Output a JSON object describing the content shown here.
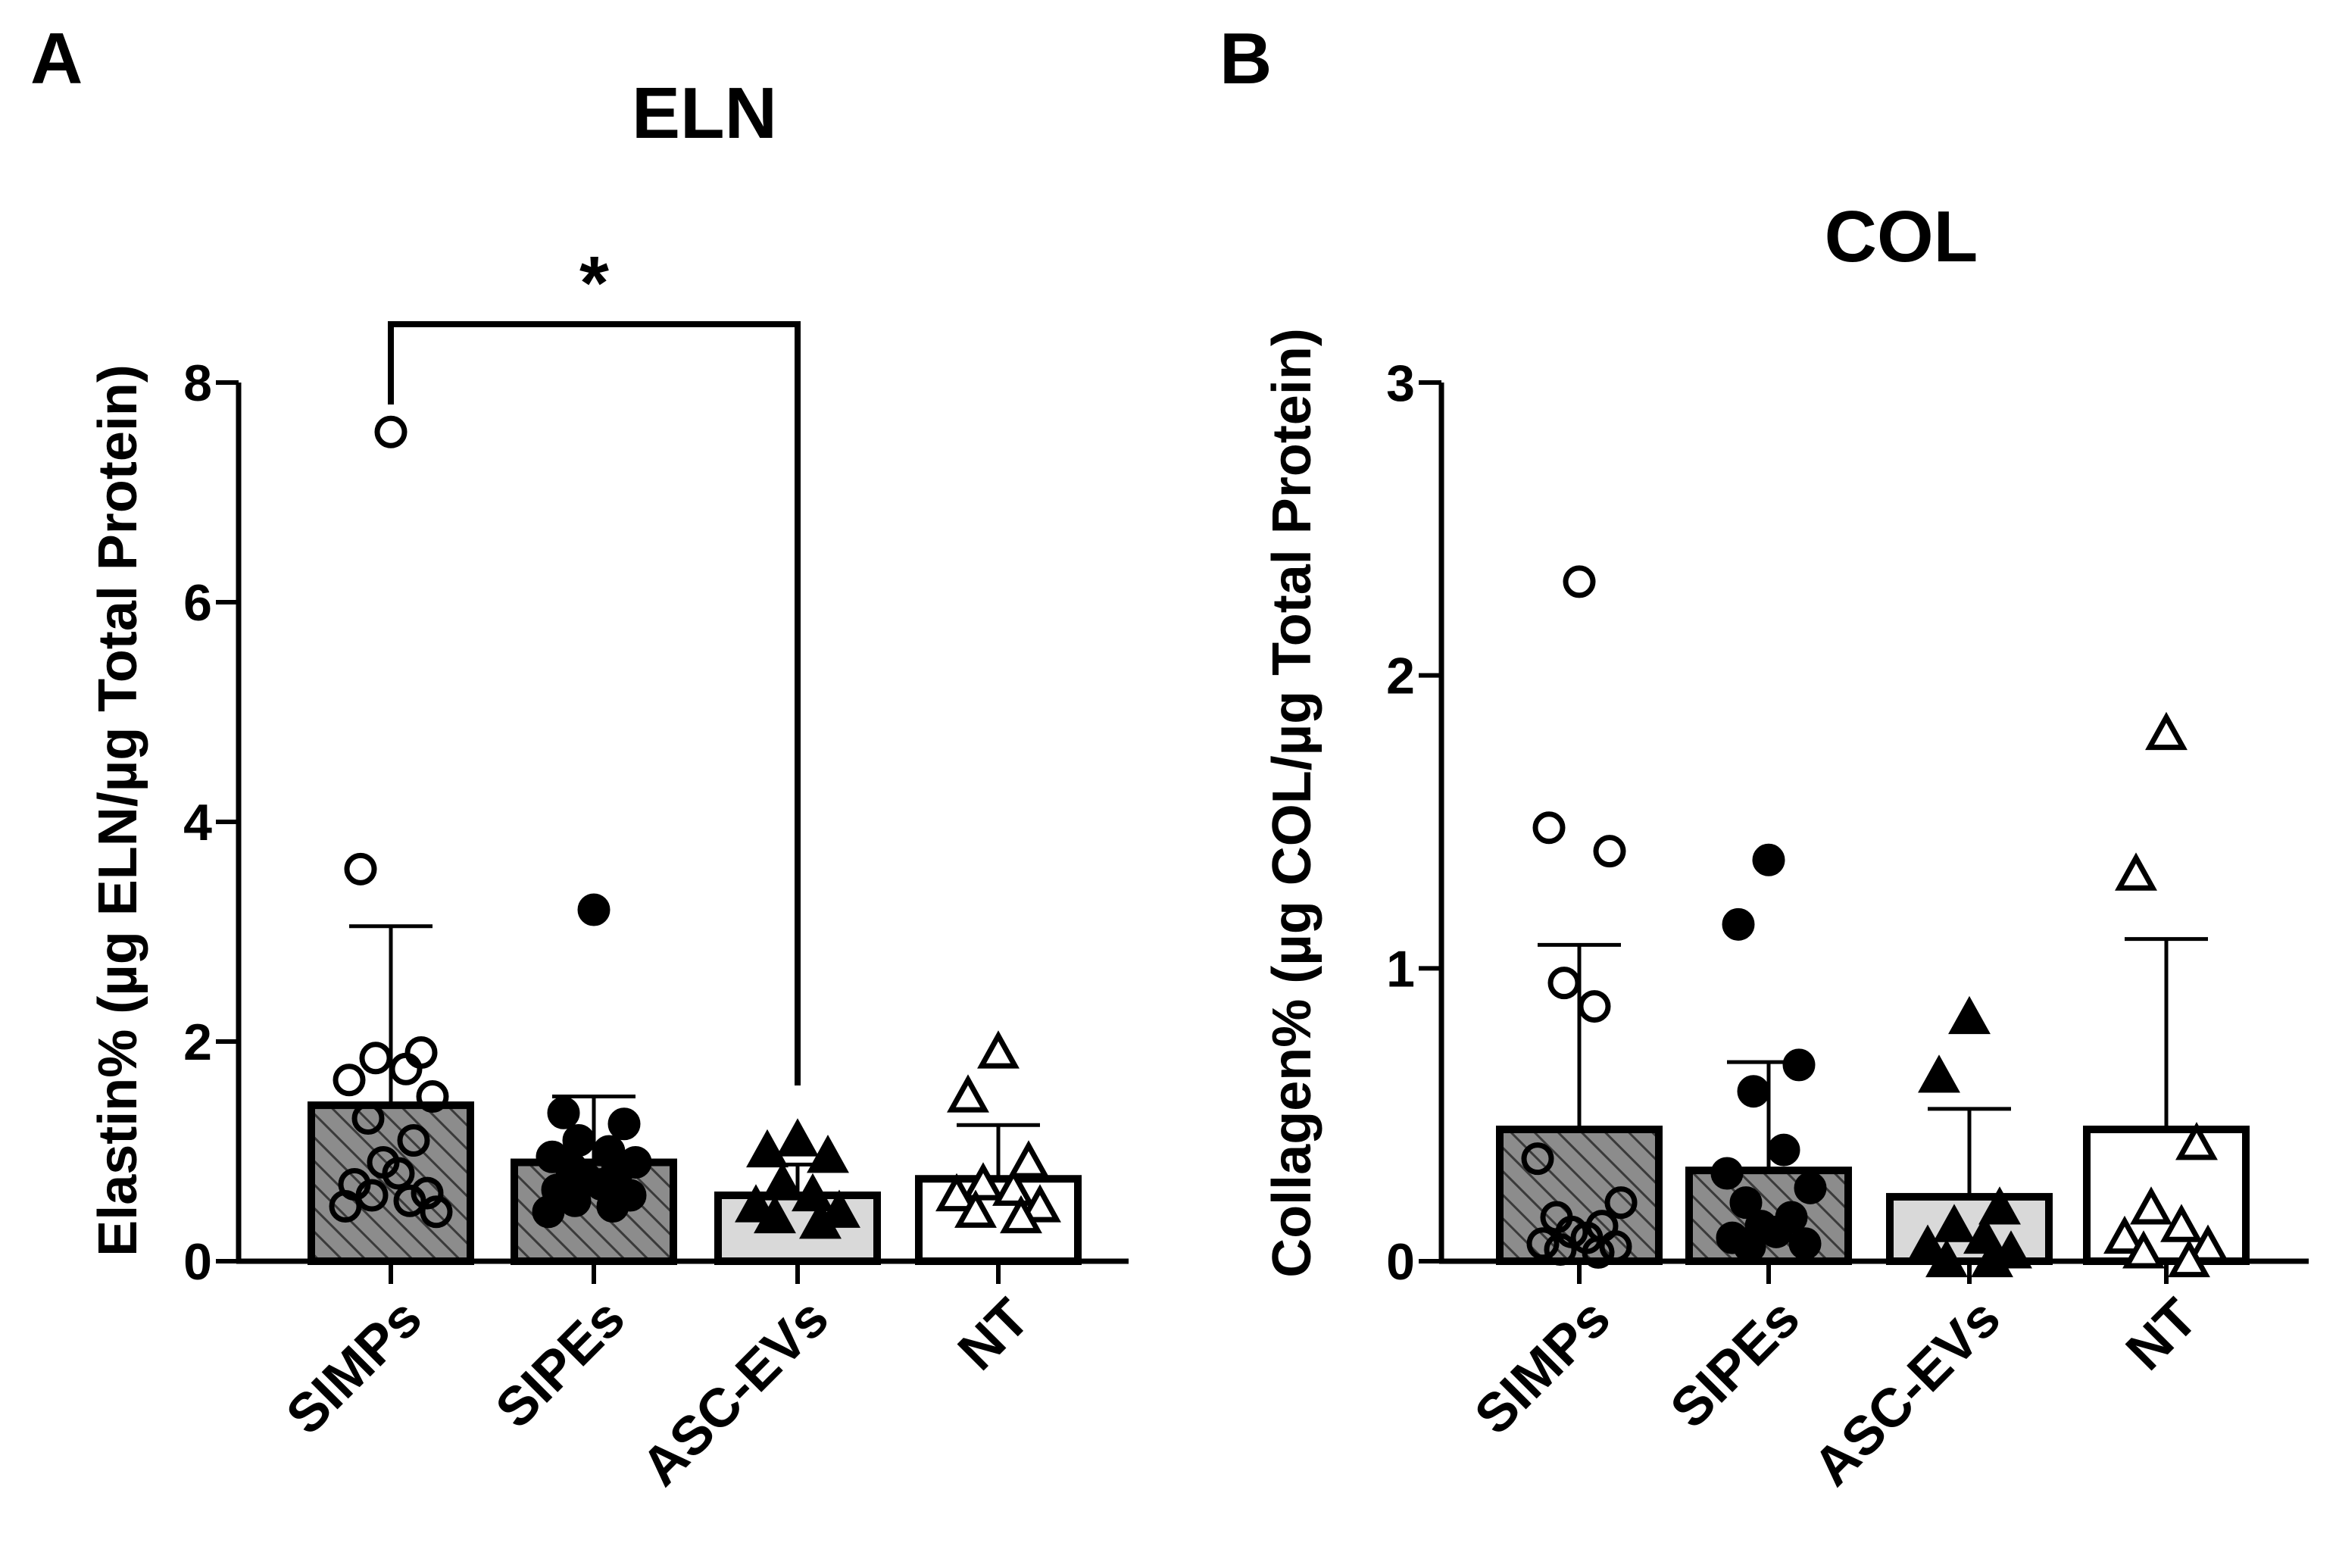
{
  "panels": [
    {
      "letter": "A",
      "chart_data": {
        "type": "bar",
        "title": "ELN",
        "ylabel": "Elastin% (µg ELN/µg Total Protein)",
        "xlabel": "",
        "categories": [
          "SIMPs",
          "SIPEs",
          "ASC-EVs",
          "NT"
        ],
        "ylim": [
          0,
          8
        ],
        "yticks": [
          0,
          2,
          4,
          6,
          8
        ],
        "means": [
          1.42,
          0.9,
          0.6,
          0.75
        ],
        "sd_upper": [
          3.05,
          1.5,
          0.88,
          1.24
        ],
        "fills": [
          "hatch",
          "hatch",
          "#d9d9d9",
          "#ffffff"
        ],
        "markers": [
          "open-circle",
          "filled-circle",
          "filled-triangle",
          "open-triangle"
        ],
        "points": [
          [
            7.55,
            3.57,
            1.9,
            1.85,
            1.75,
            1.65,
            1.5,
            1.3,
            1.1,
            0.9,
            0.8,
            0.7,
            0.62,
            0.6,
            0.55,
            0.5,
            0.45
          ],
          [
            3.2,
            1.35,
            1.25,
            1.1,
            1.0,
            0.95,
            0.9,
            0.85,
            0.8,
            0.75,
            0.7,
            0.65,
            0.6,
            0.55,
            0.5,
            0.45
          ],
          [
            1.1,
            1.0,
            0.95,
            0.7,
            0.6,
            0.5,
            0.45,
            0.4,
            0.35
          ],
          [
            1.9,
            1.5,
            0.9,
            0.7,
            0.65,
            0.6,
            0.5,
            0.45,
            0.4
          ]
        ],
        "significance": {
          "from": "SIMPs",
          "to": "ASC-EVs",
          "label": "*"
        }
      }
    },
    {
      "letter": "B",
      "chart_data": {
        "type": "bar",
        "title": "COL",
        "ylabel": "Collagen% (µg COL/µg Total Protein)",
        "xlabel": "",
        "categories": [
          "SIMPs",
          "SIPEs",
          "ASC-EVs",
          "NT"
        ],
        "ylim": [
          0,
          3
        ],
        "yticks": [
          0,
          1,
          2,
          3
        ],
        "means": [
          0.45,
          0.31,
          0.22,
          0.45
        ],
        "sd_upper": [
          1.08,
          0.68,
          0.52,
          1.1
        ],
        "fills": [
          "hatch",
          "hatch",
          "#d9d9d9",
          "#ffffff"
        ],
        "markers": [
          "open-circle",
          "filled-circle",
          "filled-triangle",
          "open-triangle"
        ],
        "points": [
          [
            2.32,
            1.48,
            1.4,
            0.95,
            0.87,
            0.35,
            0.2,
            0.15,
            0.12,
            0.1,
            0.08,
            0.06,
            0.05,
            0.04,
            0.03
          ],
          [
            1.37,
            1.15,
            0.67,
            0.58,
            0.38,
            0.3,
            0.25,
            0.2,
            0.15,
            0.12,
            0.1,
            0.08,
            0.06,
            0.05
          ],
          [
            0.83,
            0.63,
            0.18,
            0.12,
            0.08,
            0.05,
            0.03,
            0.0,
            0.0
          ],
          [
            1.8,
            1.32,
            0.4,
            0.18,
            0.12,
            0.08,
            0.05,
            0.03,
            0.0
          ]
        ]
      }
    }
  ]
}
